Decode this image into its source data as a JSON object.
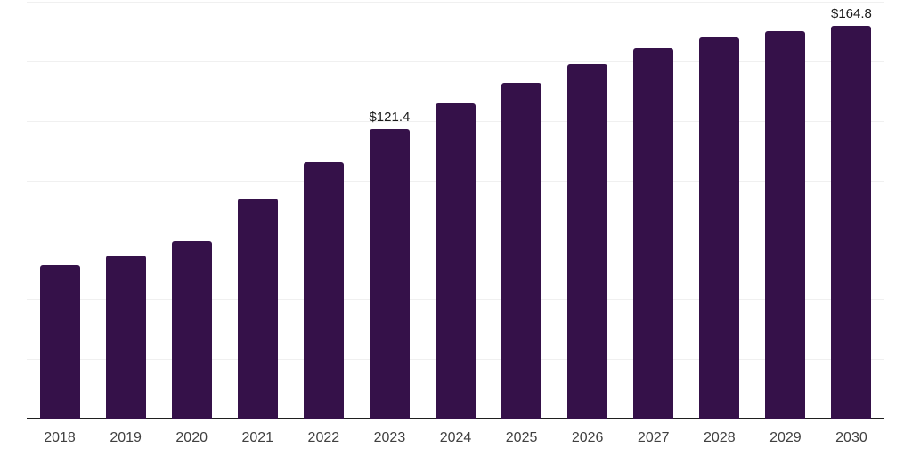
{
  "chart_data": {
    "type": "bar",
    "title": "",
    "xlabel": "",
    "ylabel": "",
    "categories": [
      "2018",
      "2019",
      "2020",
      "2021",
      "2022",
      "2023",
      "2024",
      "2025",
      "2026",
      "2027",
      "2028",
      "2029",
      "2030"
    ],
    "values": [
      64.2,
      68.6,
      74.6,
      92.5,
      107.8,
      121.4,
      132.4,
      141.0,
      148.8,
      155.5,
      160.0,
      162.6,
      164.8
    ],
    "data_labels": {
      "2023": "$121.4",
      "2030": "$164.8"
    },
    "ylim": [
      0,
      175
    ],
    "gridline_step": 25,
    "grid": true,
    "legend": false,
    "y_tick_labels_visible": false,
    "colors": {
      "bar": "#351149",
      "axis": "#1f1f1f",
      "gridline": "#f0f0f0",
      "data_label": "#1a1a1a",
      "tick_label": "#404040",
      "background": "#ffffff"
    }
  }
}
